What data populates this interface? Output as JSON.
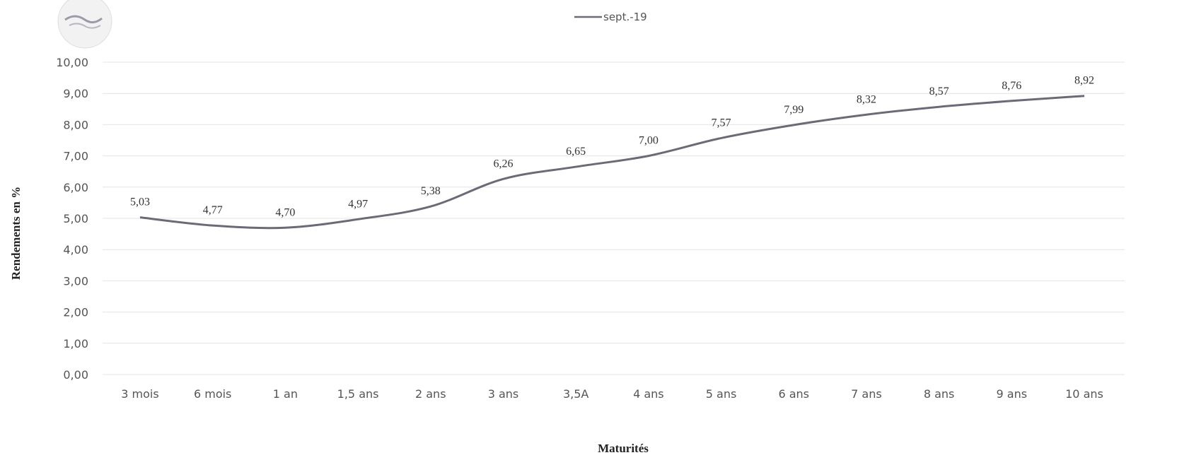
{
  "chart_data": {
    "type": "line",
    "categories": [
      "3 mois",
      "6 mois",
      "1 an",
      "1,5 ans",
      "2 ans",
      "3 ans",
      "3,5A",
      "4 ans",
      "5 ans",
      "6 ans",
      "7 ans",
      "8 ans",
      "9 ans",
      "10 ans"
    ],
    "series": [
      {
        "name": "sept.-19",
        "values": [
          5.03,
          4.77,
          4.7,
          4.97,
          5.38,
          6.26,
          6.65,
          7.0,
          7.57,
          7.99,
          8.32,
          8.57,
          8.76,
          8.92
        ],
        "data_labels": [
          "5,03",
          "4,77",
          "4,70",
          "4,97",
          "5,38",
          "6,26",
          "6,65",
          "7,00",
          "7,57",
          "7,99",
          "8,32",
          "8,57",
          "8,76",
          "8,92"
        ],
        "color": "#6b6b78"
      }
    ],
    "y_ticks": [
      "0,00",
      "1,00",
      "2,00",
      "3,00",
      "4,00",
      "5,00",
      "6,00",
      "7,00",
      "8,00",
      "9,00",
      "10,00"
    ],
    "ylim": [
      0,
      10
    ],
    "xlabel": "Maturités",
    "ylabel": "Rendements en %",
    "legend_position": "top-center",
    "grid": true,
    "smooth": true
  }
}
